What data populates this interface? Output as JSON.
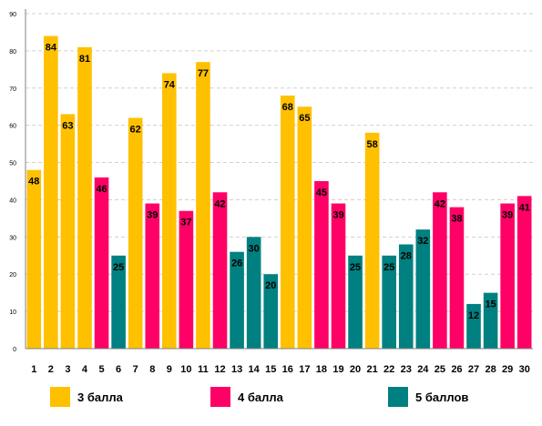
{
  "chart_data": {
    "type": "bar",
    "categories": [
      "1",
      "2",
      "3",
      "4",
      "5",
      "6",
      "7",
      "8",
      "9",
      "10",
      "11",
      "12",
      "13",
      "14",
      "15",
      "16",
      "17",
      "18",
      "19",
      "20",
      "21",
      "22",
      "23",
      "24",
      "25",
      "26",
      "27",
      "28",
      "29",
      "30"
    ],
    "values": [
      48,
      84,
      63,
      81,
      46,
      25,
      62,
      39,
      74,
      37,
      77,
      42,
      26,
      30,
      20,
      68,
      65,
      45,
      39,
      25,
      58,
      25,
      28,
      32,
      42,
      38,
      12,
      15,
      39,
      41
    ],
    "groups": [
      0,
      0,
      0,
      0,
      1,
      2,
      0,
      1,
      0,
      1,
      0,
      1,
      2,
      2,
      2,
      0,
      0,
      1,
      1,
      2,
      0,
      2,
      2,
      2,
      1,
      1,
      2,
      2,
      1,
      1
    ],
    "series": [
      {
        "name": "3 балла",
        "color": "#FFC000"
      },
      {
        "name": "4 балла",
        "color": "#FF0066"
      },
      {
        "name": "5 баллов",
        "color": "#008080"
      }
    ],
    "yticks": [
      0,
      10,
      20,
      30,
      40,
      50,
      60,
      70,
      80,
      90
    ],
    "ylim": [
      0,
      90
    ],
    "grid": true,
    "legend_position": "bottom"
  }
}
